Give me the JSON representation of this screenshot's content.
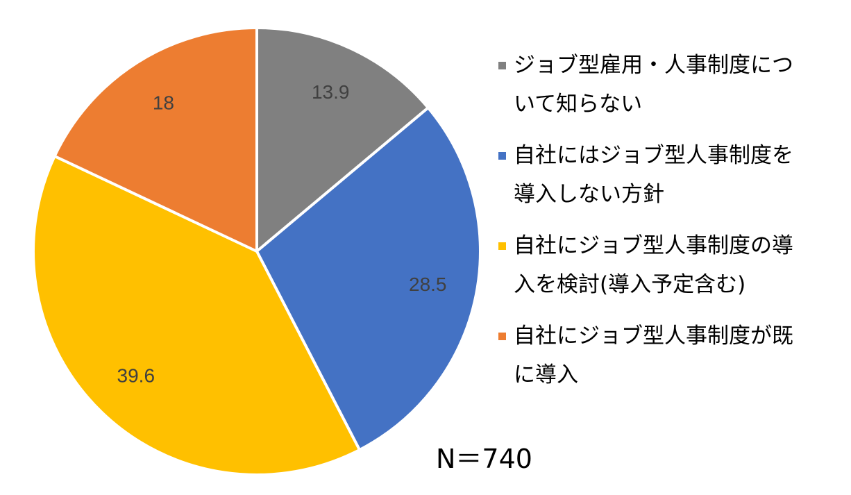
{
  "chart_data": {
    "type": "pie",
    "categories": [
      "ジョブ型雇用・人事制度について知らない",
      "自社にはジョブ型人事制度を導入しない方針",
      "自社にジョブ型人事制度の導入を検討(導入予定含む)",
      "自社にジョブ型人事制度が既に導入"
    ],
    "values": [
      13.9,
      28.5,
      39.6,
      18
    ],
    "colors": [
      "#808080",
      "#4472c4",
      "#ffc000",
      "#ed7d31"
    ],
    "annotation": "N＝740",
    "legend": "right"
  }
}
